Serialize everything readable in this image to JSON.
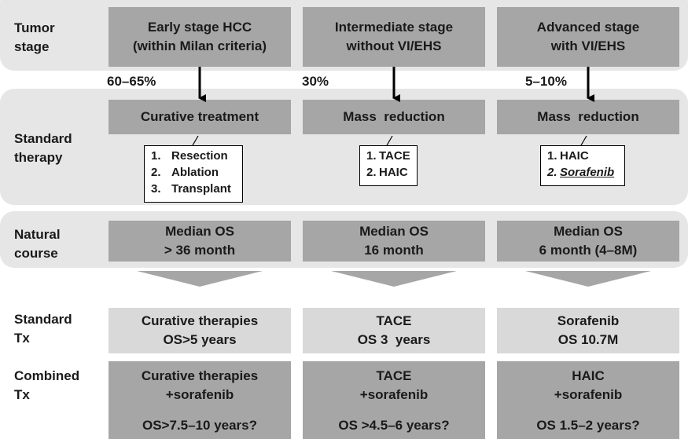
{
  "rows": {
    "tumor_stage": [
      "Tumor",
      "stage"
    ],
    "standard_therapy": [
      "Standard",
      "therapy"
    ],
    "natural_course": [
      "Natural",
      "course"
    ],
    "standard_tx": [
      "Standard",
      "Tx"
    ],
    "combined_tx": [
      "Combined",
      "Tx"
    ]
  },
  "stages": [
    {
      "line1": "Early stage HCC",
      "line2": "(within Milan criteria)",
      "percent": "60–65%"
    },
    {
      "line1": "Intermediate stage",
      "line2": "without VI/EHS",
      "percent": "30%"
    },
    {
      "line1": "Advanced stage",
      "line2": "with VI/EHS",
      "percent": "5–10%"
    }
  ],
  "therapy": [
    {
      "title": "Curative treatment",
      "items": [
        {
          "num": "1.",
          "text": "Resection"
        },
        {
          "num": "2.",
          "text": "Ablation"
        },
        {
          "num": "3.",
          "text": "Transplant"
        }
      ]
    },
    {
      "title": "Mass  reduction",
      "items": [
        {
          "num": "1.",
          "text": "TACE"
        },
        {
          "num": "2.",
          "text": "HAIC"
        }
      ]
    },
    {
      "title": "Mass  reduction",
      "items": [
        {
          "num": "1.",
          "text": "HAIC"
        },
        {
          "num": "2.",
          "text": "Sorafenib"
        }
      ]
    }
  ],
  "natural": [
    {
      "line1": "Median OS",
      "line2": "> 36 month"
    },
    {
      "line1": "Median OS",
      "line2": "16 month"
    },
    {
      "line1": "Median OS",
      "line2": "6 month (4–8M)"
    }
  ],
  "standard": [
    {
      "line1": "Curative therapies",
      "line2": "OS>5 years"
    },
    {
      "line1": "TACE",
      "line2": "OS 3  years"
    },
    {
      "line1": "Sorafenib",
      "line2": "OS 10.7M"
    }
  ],
  "combined": [
    {
      "line1": "Curative therapies",
      "line2": "+sorafenib",
      "line3": "OS>7.5–10 years?"
    },
    {
      "line1": "TACE",
      "line2": "+sorafenib",
      "line3": "OS >4.5–6 years?"
    },
    {
      "line1": "HAIC",
      "line2": "+sorafenib",
      "line3": "OS 1.5–2 years?"
    }
  ],
  "colors": {
    "dark_box": "#a6a6a6",
    "light_box": "#d9d9d9",
    "band": "#e6e6e6",
    "arrow": "#000000"
  }
}
